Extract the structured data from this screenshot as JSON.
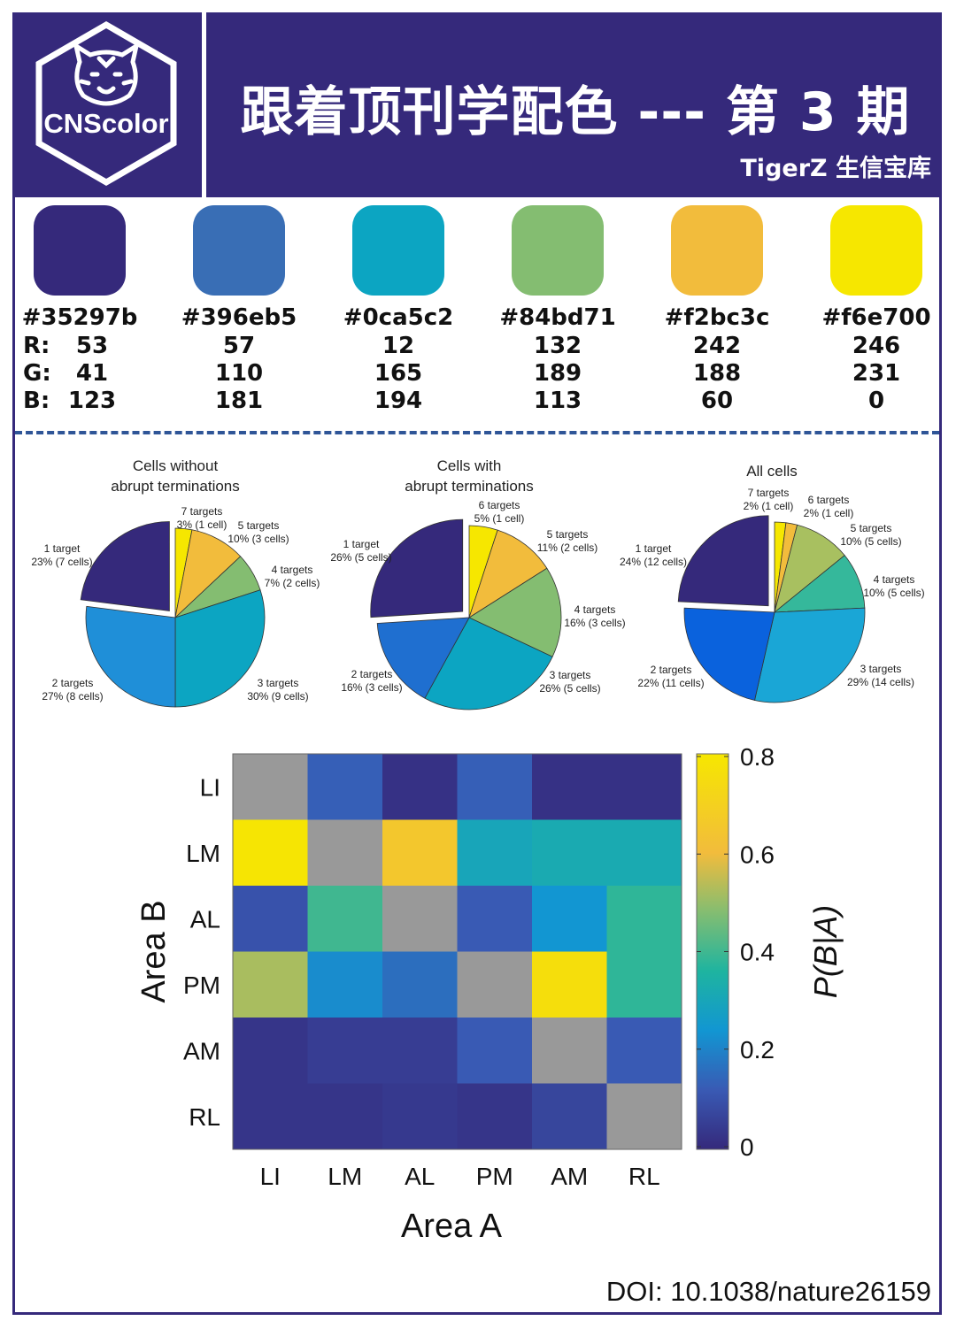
{
  "header": {
    "logo_text": "CNScolor",
    "title": "跟着顶刊学配色 --- 第 3 期",
    "subtitle": "TigerZ 生信宝库"
  },
  "palette": {
    "row_labels": [
      "R:",
      "G:",
      "B:"
    ],
    "colors": [
      {
        "hex": "#35297b",
        "r": "53",
        "g": "41",
        "b": "123"
      },
      {
        "hex": "#396eb5",
        "r": "57",
        "g": "110",
        "b": "181"
      },
      {
        "hex": "#0ca5c2",
        "r": "12",
        "g": "165",
        "b": "194"
      },
      {
        "hex": "#84bd71",
        "r": "132",
        "g": "189",
        "b": "113"
      },
      {
        "hex": "#f2bc3c",
        "r": "242",
        "g": "188",
        "b": "60"
      },
      {
        "hex": "#f6e700",
        "r": "246",
        "g": "231",
        "b": "0"
      }
    ]
  },
  "chart_data": [
    {
      "type": "pie",
      "title_lines": [
        "Cells without",
        "abrupt terminations"
      ],
      "slices": [
        {
          "label": "1 target",
          "detail": "23% (7 cells)",
          "percent": 23,
          "color": "#35297b",
          "exploded": true
        },
        {
          "label": "7 targets",
          "detail": "3% (1 cell)",
          "percent": 3,
          "color": "#f6e700"
        },
        {
          "label": "5 targets",
          "detail": "10% (3 cells)",
          "percent": 10,
          "color": "#f2bc3c"
        },
        {
          "label": "4 targets",
          "detail": "7% (2 cells)",
          "percent": 7,
          "color": "#84bd71"
        },
        {
          "label": "3 targets",
          "detail": "30% (9 cells)",
          "percent": 30,
          "color": "#0ca5c2"
        },
        {
          "label": "2 targets",
          "detail": "27% (8 cells)",
          "percent": 27,
          "color": "#1f8fd8"
        }
      ]
    },
    {
      "type": "pie",
      "title_lines": [
        "Cells with",
        "abrupt terminations"
      ],
      "slices": [
        {
          "label": "1 target",
          "detail": "26% (5 cells)",
          "percent": 26,
          "color": "#35297b",
          "exploded": true
        },
        {
          "label": "6 targets",
          "detail": "5% (1 cell)",
          "percent": 5,
          "color": "#f6e700"
        },
        {
          "label": "5 targets",
          "detail": "11% (2 cells)",
          "percent": 11,
          "color": "#f2bc3c"
        },
        {
          "label": "4 targets",
          "detail": "16% (3 cells)",
          "percent": 16,
          "color": "#84bd71"
        },
        {
          "label": "3 targets",
          "detail": "26% (5 cells)",
          "percent": 26,
          "color": "#0ca5c2"
        },
        {
          "label": "2 targets",
          "detail": "16% (3 cells)",
          "percent": 16,
          "color": "#1f6fd0"
        }
      ]
    },
    {
      "type": "pie",
      "title_lines": [
        "All cells"
      ],
      "slices": [
        {
          "label": "1 target",
          "detail": "24% (12 cells)",
          "percent": 24,
          "color": "#35297b",
          "exploded": true
        },
        {
          "label": "7 targets",
          "detail": "2% (1 cell)",
          "percent": 2,
          "color": "#f6e700"
        },
        {
          "label": "6 targets",
          "detail": "2% (1 cell)",
          "percent": 2,
          "color": "#f2bc3c"
        },
        {
          "label": "5 targets",
          "detail": "10% (5 cells)",
          "percent": 10,
          "color": "#a8c060"
        },
        {
          "label": "4 targets",
          "detail": "10% (5 cells)",
          "percent": 10,
          "color": "#35b89b"
        },
        {
          "label": "3 targets",
          "detail": "29% (14 cells)",
          "percent": 29,
          "color": "#1aa6d6"
        },
        {
          "label": "2 targets",
          "detail": "22% (11 cells)",
          "percent": 22,
          "color": "#0a62dd"
        }
      ]
    },
    {
      "type": "heatmap",
      "xlabel": "Area A",
      "ylabel": "Area B",
      "x_categories": [
        "LI",
        "LM",
        "AL",
        "PM",
        "AM",
        "RL"
      ],
      "y_categories": [
        "LI",
        "LM",
        "AL",
        "PM",
        "AM",
        "RL"
      ],
      "colorbar_label": "P(B|A)",
      "colorbar_ticks": [
        "0",
        "0.2",
        "0.4",
        "0.6",
        "0.8"
      ],
      "zlim": [
        0,
        0.8
      ],
      "diagonal_color": "#999999",
      "values": [
        [
          null,
          0.13,
          0.02,
          0.13,
          0.02,
          0.02
        ],
        [
          0.79,
          null,
          0.65,
          0.3,
          0.32,
          0.32
        ],
        [
          0.1,
          0.4,
          null,
          0.12,
          0.24,
          0.38
        ],
        [
          0.52,
          0.22,
          0.16,
          null,
          0.76,
          0.38
        ],
        [
          0.03,
          0.05,
          0.05,
          0.12,
          null,
          0.12
        ],
        [
          0.03,
          0.03,
          0.04,
          0.03,
          0.07,
          null
        ]
      ]
    }
  ],
  "footer": {
    "doi": "DOI: 10.1038/nature26159"
  }
}
